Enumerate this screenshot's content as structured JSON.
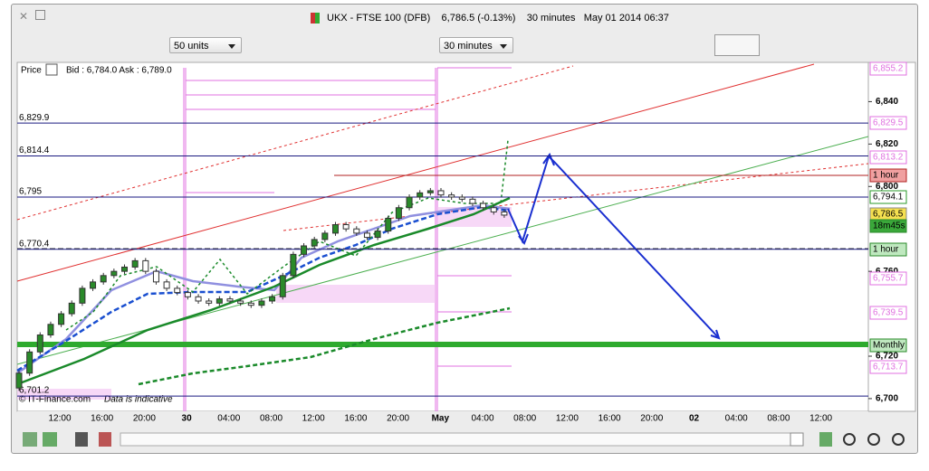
{
  "title_bar": {
    "instrument": "UKX - FTSE 100 (DFB)",
    "price": "6,786.5 (-0.13%)",
    "interval": "30 minutes",
    "datetime": "May 01 2014 06:37"
  },
  "toolbar": {
    "units": "50 units",
    "period": "30 minutes"
  },
  "chart_data": {
    "type": "candlestick",
    "header": "Price",
    "quote": "Bid : 6,784.0 Ask : 6,789.0",
    "footer": "© IT-Finance.com",
    "note": "Data is indicative",
    "ylim": [
      6694,
      6858.5
    ],
    "yticks": [
      {
        "value": 6840,
        "label": "6,840"
      },
      {
        "value": 6820,
        "label": "6,820"
      },
      {
        "value": 6800,
        "label": "6,800"
      },
      {
        "value": 6760,
        "label": "6,760"
      },
      {
        "value": 6720,
        "label": "6,720"
      },
      {
        "value": 6700,
        "label": "6,700"
      }
    ],
    "levels": [
      {
        "value": 6829.9,
        "label": "6,829.9"
      },
      {
        "value": 6814.4,
        "label": "6,814.4"
      },
      {
        "value": 6795,
        "label": "6,795"
      },
      {
        "value": 6770.4,
        "label": "6,770.4"
      },
      {
        "value": 6701.2,
        "label": "6,701.2"
      }
    ],
    "tags": [
      "6,855.2",
      "6,829.5",
      "6,813.2",
      "1 hour",
      "6,794.1",
      "6,786.5",
      "18m45s",
      "1 hour",
      "6,755.7",
      "6,739.5",
      "Monthly",
      "6,713.7"
    ],
    "x_labels": [
      "12:00",
      "16:00",
      "20:00",
      "30",
      "04:00",
      "08:00",
      "12:00",
      "16:00",
      "20:00",
      "May",
      "04:00",
      "08:00",
      "12:00",
      "16:00",
      "20:00",
      "02",
      "04:00",
      "08:00",
      "12:00"
    ],
    "open": [
      6705,
      6712,
      6722,
      6730,
      6735,
      6740,
      6745,
      6752,
      6755,
      6758,
      6760,
      6762,
      6765,
      6760,
      6755,
      6752,
      6750,
      6748,
      6746,
      6745,
      6747,
      6746,
      6745,
      6744,
      6746,
      6748,
      6758,
      6768,
      6772,
      6775,
      6778,
      6782,
      6780,
      6778,
      6776,
      6779,
      6785,
      6790,
      6795,
      6797,
      6798,
      6796,
      6795,
      6794,
      6792,
      6790,
      6788
    ],
    "close": [
      6712,
      6722,
      6730,
      6735,
      6740,
      6745,
      6752,
      6755,
      6758,
      6760,
      6762,
      6765,
      6760,
      6755,
      6752,
      6750,
      6748,
      6746,
      6745,
      6747,
      6746,
      6745,
      6744,
      6746,
      6748,
      6758,
      6768,
      6772,
      6775,
      6778,
      6782,
      6780,
      6778,
      6776,
      6779,
      6785,
      6790,
      6795,
      6797,
      6798,
      6796,
      6795,
      6794,
      6792,
      6790,
      6788,
      6786.5
    ]
  }
}
